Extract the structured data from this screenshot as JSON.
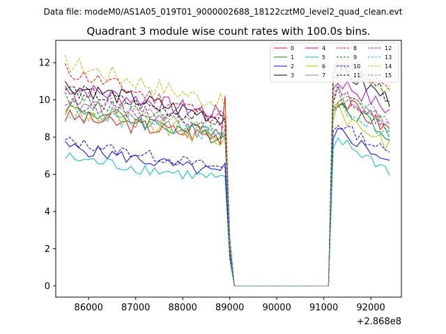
{
  "figure": {
    "suptitle": "Data file: modeM0/AS1A05_019T01_9000002688_18122cztM0_level2_quad_clean.evt",
    "offset_label": "+2.868e8"
  },
  "chart_data": {
    "type": "line",
    "title": "Quadrant 3 module wise count rates with 100.0s bins.",
    "xlabel": "",
    "ylabel": "",
    "x_offset": 286800000,
    "xlim": [
      85300,
      92650
    ],
    "ylim": [
      -0.6,
      13.2
    ],
    "xticks": [
      86000,
      87000,
      88000,
      89000,
      90000,
      91000,
      92000
    ],
    "yticks": [
      0,
      2,
      4,
      6,
      8,
      10,
      12
    ],
    "legend": {
      "location": "top-right",
      "columns": 4
    },
    "gap": {
      "start": 89100,
      "end": 91100
    },
    "series": [
      {
        "name": "0",
        "color": "#ff0000",
        "dash": "solid",
        "base": 9.1,
        "trend": -1.1,
        "spread": 0.45,
        "pre": 10.2,
        "post": 9.6
      },
      {
        "name": "1",
        "color": "#008000",
        "dash": "solid",
        "base": 9.6,
        "trend": -1.6,
        "spread": 0.45,
        "pre": 8.1,
        "post": 9.4
      },
      {
        "name": "2",
        "color": "#0000ff",
        "dash": "solid",
        "base": 7.5,
        "trend": -1.5,
        "spread": 0.35,
        "pre": 6.6,
        "post": 7.9
      },
      {
        "name": "3",
        "color": "#000000",
        "dash": "solid",
        "base": 10.8,
        "trend": -1.8,
        "spread": 0.45,
        "pre": 9.0,
        "post": 11.2
      },
      {
        "name": "4",
        "color": "#c000c0",
        "dash": "solid",
        "base": 10.7,
        "trend": -1.5,
        "spread": 0.45,
        "pre": 9.1,
        "post": 10.6
      },
      {
        "name": "5",
        "color": "#00bfbf",
        "dash": "solid",
        "base": 6.9,
        "trend": -1.2,
        "spread": 0.35,
        "pre": 5.9,
        "post": 7.4
      },
      {
        "name": "6",
        "color": "#bfbf00",
        "dash": "solid",
        "base": 9.5,
        "trend": -1.6,
        "spread": 0.55,
        "pre": 8.0,
        "post": 8.9
      },
      {
        "name": "7",
        "color": "#808080",
        "dash": "solid",
        "base": 9.8,
        "trend": -1.8,
        "spread": 0.5,
        "pre": 8.2,
        "post": 9.6
      },
      {
        "name": "8",
        "color": "#ff0000",
        "dash": "dashed",
        "base": 11.6,
        "trend": -2.6,
        "spread": 0.45,
        "pre": 9.2,
        "post": 11.6
      },
      {
        "name": "9",
        "color": "#008000",
        "dash": "dashed",
        "base": 10.2,
        "trend": -2.0,
        "spread": 0.45,
        "pre": 8.4,
        "post": 9.8
      },
      {
        "name": "10",
        "color": "#0000ff",
        "dash": "dashed",
        "base": 7.8,
        "trend": -1.5,
        "spread": 0.3,
        "pre": 6.4,
        "post": 8.3
      },
      {
        "name": "11",
        "color": "#000000",
        "dash": "dashed",
        "base": 10.6,
        "trend": -1.8,
        "spread": 0.4,
        "pre": 8.9,
        "post": 11.4
      },
      {
        "name": "12",
        "color": "#c000c0",
        "dash": "dashed",
        "base": 9.9,
        "trend": -1.2,
        "spread": 0.4,
        "pre": 8.5,
        "post": 9.9
      },
      {
        "name": "13",
        "color": "#00bfbf",
        "dash": "dashed",
        "base": 9.3,
        "trend": -1.2,
        "spread": 0.4,
        "pre": 7.9,
        "post": 9.3
      },
      {
        "name": "14",
        "color": "#bfbf00",
        "dash": "dashed",
        "base": 12.0,
        "trend": -2.2,
        "spread": 0.5,
        "pre": 9.6,
        "post": 11.8
      },
      {
        "name": "15",
        "color": "#808080",
        "dash": "dashed",
        "base": 10.4,
        "trend": -2.2,
        "spread": 0.4,
        "pre": 8.3,
        "post": 10.1
      }
    ]
  }
}
